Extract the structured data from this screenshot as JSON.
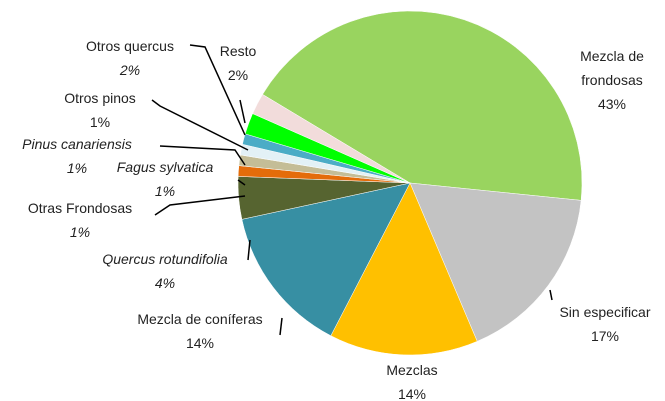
{
  "chart_data": {
    "type": "pie",
    "categories": [
      "Mezcla de frondosas",
      "Sin especificar",
      "Mezclas",
      "Mezcla de coníferas",
      "Quercus rotundifolia",
      "Otras Frondosas",
      "Fagus sylvatica",
      "Pinus canariensis",
      "Otros pinos",
      "Otros quercus",
      "Resto"
    ],
    "values": [
      43,
      17,
      14,
      14,
      4,
      1,
      1,
      1,
      1,
      2,
      2
    ],
    "value_labels": [
      "43%",
      "17%",
      "14%",
      "14%",
      "4%",
      "1%",
      "1%",
      "1%",
      "1%",
      "2%",
      "2%"
    ],
    "colors": [
      "#99d45f",
      "#c3c3c3",
      "#ffc000",
      "#378fa3",
      "#566430",
      "#e46c0a",
      "#c4bd97",
      "#e3f1f6",
      "#4bacc6",
      "#00ff00",
      "#f2dcdb"
    ]
  }
}
